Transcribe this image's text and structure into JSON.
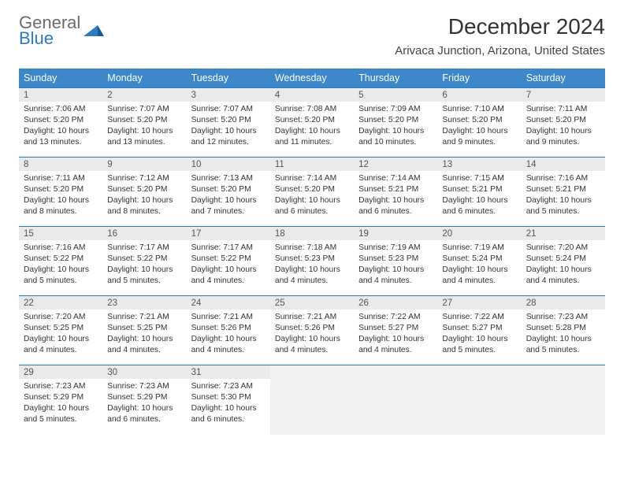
{
  "brand": {
    "line1": "General",
    "line2": "Blue"
  },
  "title": "December 2024",
  "location": "Arivaca Junction, Arizona, United States",
  "colors": {
    "header_bg": "#3b87c8",
    "rule": "#2b7bbf",
    "daynum_bg": "#eaeaea",
    "empty_bg": "#f2f2f2",
    "logo_gray": "#6b6b6b",
    "logo_blue": "#2b7bbf"
  },
  "dow": [
    "Sunday",
    "Monday",
    "Tuesday",
    "Wednesday",
    "Thursday",
    "Friday",
    "Saturday"
  ],
  "weeks": [
    [
      {
        "n": "1",
        "sunrise": "Sunrise: 7:06 AM",
        "sunset": "Sunset: 5:20 PM",
        "day": "Daylight: 10 hours and 13 minutes."
      },
      {
        "n": "2",
        "sunrise": "Sunrise: 7:07 AM",
        "sunset": "Sunset: 5:20 PM",
        "day": "Daylight: 10 hours and 13 minutes."
      },
      {
        "n": "3",
        "sunrise": "Sunrise: 7:07 AM",
        "sunset": "Sunset: 5:20 PM",
        "day": "Daylight: 10 hours and 12 minutes."
      },
      {
        "n": "4",
        "sunrise": "Sunrise: 7:08 AM",
        "sunset": "Sunset: 5:20 PM",
        "day": "Daylight: 10 hours and 11 minutes."
      },
      {
        "n": "5",
        "sunrise": "Sunrise: 7:09 AM",
        "sunset": "Sunset: 5:20 PM",
        "day": "Daylight: 10 hours and 10 minutes."
      },
      {
        "n": "6",
        "sunrise": "Sunrise: 7:10 AM",
        "sunset": "Sunset: 5:20 PM",
        "day": "Daylight: 10 hours and 9 minutes."
      },
      {
        "n": "7",
        "sunrise": "Sunrise: 7:11 AM",
        "sunset": "Sunset: 5:20 PM",
        "day": "Daylight: 10 hours and 9 minutes."
      }
    ],
    [
      {
        "n": "8",
        "sunrise": "Sunrise: 7:11 AM",
        "sunset": "Sunset: 5:20 PM",
        "day": "Daylight: 10 hours and 8 minutes."
      },
      {
        "n": "9",
        "sunrise": "Sunrise: 7:12 AM",
        "sunset": "Sunset: 5:20 PM",
        "day": "Daylight: 10 hours and 8 minutes."
      },
      {
        "n": "10",
        "sunrise": "Sunrise: 7:13 AM",
        "sunset": "Sunset: 5:20 PM",
        "day": "Daylight: 10 hours and 7 minutes."
      },
      {
        "n": "11",
        "sunrise": "Sunrise: 7:14 AM",
        "sunset": "Sunset: 5:20 PM",
        "day": "Daylight: 10 hours and 6 minutes."
      },
      {
        "n": "12",
        "sunrise": "Sunrise: 7:14 AM",
        "sunset": "Sunset: 5:21 PM",
        "day": "Daylight: 10 hours and 6 minutes."
      },
      {
        "n": "13",
        "sunrise": "Sunrise: 7:15 AM",
        "sunset": "Sunset: 5:21 PM",
        "day": "Daylight: 10 hours and 6 minutes."
      },
      {
        "n": "14",
        "sunrise": "Sunrise: 7:16 AM",
        "sunset": "Sunset: 5:21 PM",
        "day": "Daylight: 10 hours and 5 minutes."
      }
    ],
    [
      {
        "n": "15",
        "sunrise": "Sunrise: 7:16 AM",
        "sunset": "Sunset: 5:22 PM",
        "day": "Daylight: 10 hours and 5 minutes."
      },
      {
        "n": "16",
        "sunrise": "Sunrise: 7:17 AM",
        "sunset": "Sunset: 5:22 PM",
        "day": "Daylight: 10 hours and 5 minutes."
      },
      {
        "n": "17",
        "sunrise": "Sunrise: 7:17 AM",
        "sunset": "Sunset: 5:22 PM",
        "day": "Daylight: 10 hours and 4 minutes."
      },
      {
        "n": "18",
        "sunrise": "Sunrise: 7:18 AM",
        "sunset": "Sunset: 5:23 PM",
        "day": "Daylight: 10 hours and 4 minutes."
      },
      {
        "n": "19",
        "sunrise": "Sunrise: 7:19 AM",
        "sunset": "Sunset: 5:23 PM",
        "day": "Daylight: 10 hours and 4 minutes."
      },
      {
        "n": "20",
        "sunrise": "Sunrise: 7:19 AM",
        "sunset": "Sunset: 5:24 PM",
        "day": "Daylight: 10 hours and 4 minutes."
      },
      {
        "n": "21",
        "sunrise": "Sunrise: 7:20 AM",
        "sunset": "Sunset: 5:24 PM",
        "day": "Daylight: 10 hours and 4 minutes."
      }
    ],
    [
      {
        "n": "22",
        "sunrise": "Sunrise: 7:20 AM",
        "sunset": "Sunset: 5:25 PM",
        "day": "Daylight: 10 hours and 4 minutes."
      },
      {
        "n": "23",
        "sunrise": "Sunrise: 7:21 AM",
        "sunset": "Sunset: 5:25 PM",
        "day": "Daylight: 10 hours and 4 minutes."
      },
      {
        "n": "24",
        "sunrise": "Sunrise: 7:21 AM",
        "sunset": "Sunset: 5:26 PM",
        "day": "Daylight: 10 hours and 4 minutes."
      },
      {
        "n": "25",
        "sunrise": "Sunrise: 7:21 AM",
        "sunset": "Sunset: 5:26 PM",
        "day": "Daylight: 10 hours and 4 minutes."
      },
      {
        "n": "26",
        "sunrise": "Sunrise: 7:22 AM",
        "sunset": "Sunset: 5:27 PM",
        "day": "Daylight: 10 hours and 4 minutes."
      },
      {
        "n": "27",
        "sunrise": "Sunrise: 7:22 AM",
        "sunset": "Sunset: 5:27 PM",
        "day": "Daylight: 10 hours and 5 minutes."
      },
      {
        "n": "28",
        "sunrise": "Sunrise: 7:23 AM",
        "sunset": "Sunset: 5:28 PM",
        "day": "Daylight: 10 hours and 5 minutes."
      }
    ],
    [
      {
        "n": "29",
        "sunrise": "Sunrise: 7:23 AM",
        "sunset": "Sunset: 5:29 PM",
        "day": "Daylight: 10 hours and 5 minutes."
      },
      {
        "n": "30",
        "sunrise": "Sunrise: 7:23 AM",
        "sunset": "Sunset: 5:29 PM",
        "day": "Daylight: 10 hours and 6 minutes."
      },
      {
        "n": "31",
        "sunrise": "Sunrise: 7:23 AM",
        "sunset": "Sunset: 5:30 PM",
        "day": "Daylight: 10 hours and 6 minutes."
      },
      null,
      null,
      null,
      null
    ]
  ]
}
